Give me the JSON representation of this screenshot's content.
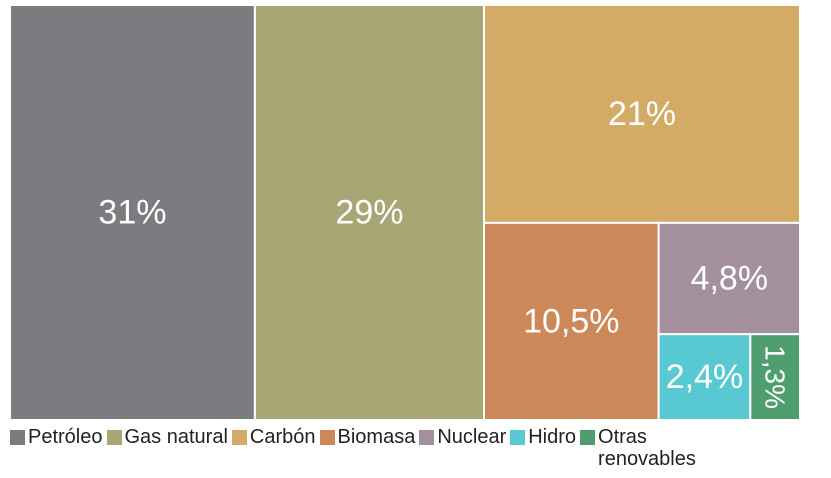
{
  "chart_data": {
    "type": "treemap",
    "categories": [
      "Petróleo",
      "Gas natural",
      "Carbón",
      "Biomasa",
      "Nuclear",
      "Hidro",
      "Otras renovables"
    ],
    "values": [
      31,
      29,
      21,
      10.5,
      4.8,
      2.4,
      1.3
    ],
    "value_labels": [
      "31%",
      "29%",
      "21%",
      "10,5%",
      "4,8%",
      "2,4%",
      "1,3%"
    ],
    "colors": [
      "#7b7c80",
      "#a8a674",
      "#d3aa66",
      "#cc8858",
      "#a48f9c",
      "#58c8d2",
      "#4f9e70"
    ]
  }
}
